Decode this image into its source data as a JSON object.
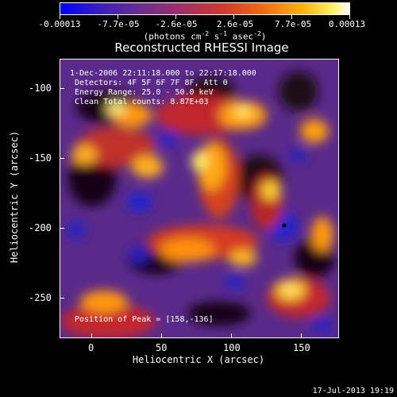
{
  "colorbar": {
    "tick_labels": [
      "-0.00013",
      "-7.7e-05",
      "-2.6e-05",
      "2.6e-05",
      "7.7e-05",
      "0.00013"
    ],
    "units_text": "(photons cm",
    "units_exp1": "-2",
    "units_mid1": " s",
    "units_exp2": "-1",
    "units_mid2": " asec",
    "units_exp3": "-2",
    "units_end": ")"
  },
  "title": "Reconstructed RHESSI Image",
  "info": {
    "time_range": "1-Dec-2006 22:11:18.000 to 22:17:18.000",
    "detectors": "Detectors: 4F 5F 6F 7F 8F, Att 0",
    "energy": "Energy Range: 25.0 - 50.0 keV",
    "algorithm": "Clean     Total counts: 8.87E+03",
    "peak": "Position of Peak = [158,-136]"
  },
  "axes": {
    "x_title": "Heliocentric X (arcsec)",
    "y_title": "Heliocentric Y (arcsec)",
    "x_ticks": [
      "0",
      "50",
      "100",
      "150"
    ],
    "y_ticks": [
      "-100",
      "-150",
      "-200",
      "-250"
    ]
  },
  "footer": {
    "timestamp": "17-Jul-2013 19:19"
  },
  "colors": {
    "background": "#000000",
    "text": "#ffffff",
    "low": "#0000ff",
    "mid_low": "#5b2a96",
    "mid": "#c0392b",
    "mid_high": "#ff7f0e",
    "high": "#ffffff"
  }
}
